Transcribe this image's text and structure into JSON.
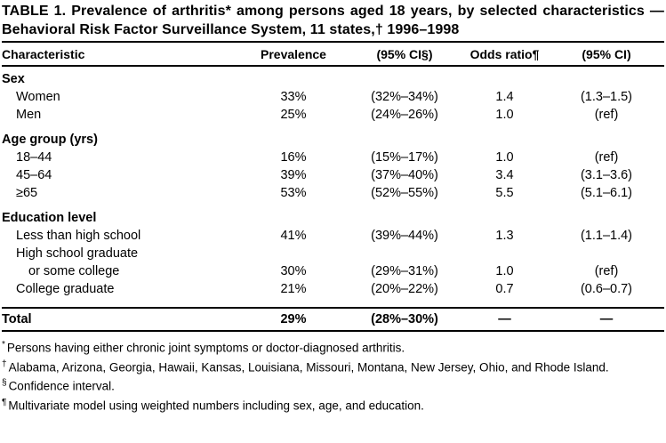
{
  "title": "TABLE 1. Prevalence of arthritis* among persons aged  18 years, by selected characteristics — Behavioral Risk Factor Surveillance System, 11 states,† 1996–1998",
  "columns": [
    "Characteristic",
    "Prevalence",
    "(95% CI§)",
    "Odds ratio¶",
    "(95% CI)"
  ],
  "sections": [
    {
      "header": "Sex",
      "rows": [
        {
          "label": "Women",
          "values": [
            "33%",
            "(32%–34%)",
            "1.4",
            "(1.3–1.5)"
          ]
        },
        {
          "label": "Men",
          "values": [
            "25%",
            "(24%–26%)",
            "1.0",
            "(ref)"
          ]
        }
      ]
    },
    {
      "header": "Age group (yrs)",
      "rows": [
        {
          "label": "18–44",
          "values": [
            "16%",
            "(15%–17%)",
            "1.0",
            "(ref)"
          ]
        },
        {
          "label": "45–64",
          "values": [
            "39%",
            "(37%–40%)",
            "3.4",
            "(3.1–3.6)"
          ]
        },
        {
          "label": "≥65",
          "values": [
            "53%",
            "(52%–55%)",
            "5.5",
            "(5.1–6.1)"
          ]
        }
      ]
    },
    {
      "header": "Education level",
      "rows": [
        {
          "label": "Less than high school",
          "values": [
            "41%",
            "(39%–44%)",
            "1.3",
            "(1.1–1.4)"
          ]
        },
        {
          "label": "High school graduate",
          "label2": "or some college",
          "values": [
            "30%",
            "(29%–31%)",
            "1.0",
            "(ref)"
          ]
        },
        {
          "label": "College graduate",
          "values": [
            "21%",
            "(20%–22%)",
            "0.7",
            "(0.6–0.7)"
          ]
        }
      ]
    }
  ],
  "total": {
    "label": "Total",
    "values": [
      "29%",
      "(28%–30%)",
      "—",
      "—"
    ]
  },
  "footnotes": [
    {
      "marker": "*",
      "text": "Persons having either chronic joint symptoms or doctor-diagnosed arthritis."
    },
    {
      "marker": "†",
      "text": "Alabama, Arizona, Georgia, Hawaii, Kansas, Louisiana, Missouri, Montana, New Jersey, Ohio, and Rhode Island."
    },
    {
      "marker": "§",
      "text": "Confidence interval."
    },
    {
      "marker": "¶",
      "text": "Multivariate model using weighted numbers including sex, age, and education."
    }
  ]
}
